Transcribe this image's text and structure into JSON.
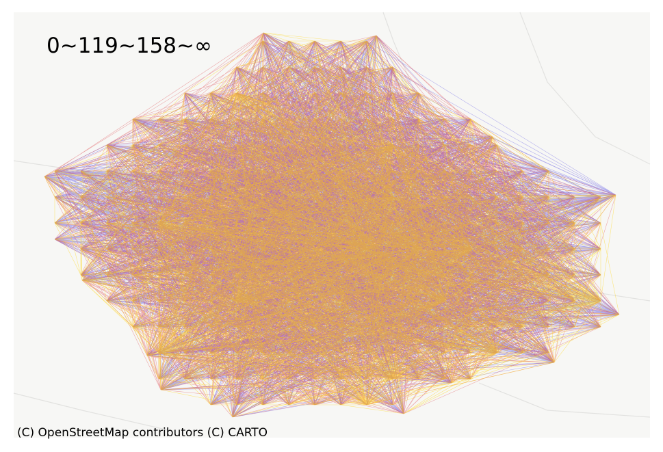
{
  "map": {
    "title": "0~119~158~∞",
    "attribution": "(C) OpenStreetMap contributors (C) CARTO"
  }
}
